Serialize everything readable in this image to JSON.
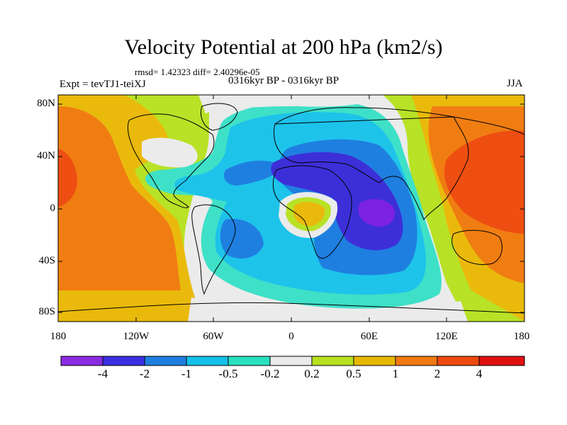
{
  "title": "Velocity Potential at 200 hPa (km2/s)",
  "stats": "rmsd= 1.42323 diff= 2.40296e-05",
  "left_label": "Expt = tevTJ1-teiXJ",
  "center_label": "0316kyr BP - 0316kyr BP",
  "right_label": "JJA",
  "lat_ticks": [
    "80N",
    "40N",
    "0",
    "40S",
    "80S"
  ],
  "lon_ticks": [
    "180",
    "120W",
    "60W",
    "0",
    "60E",
    "120E",
    "180"
  ],
  "colorbar": {
    "labels": [
      "-4",
      "-2",
      "-1",
      "-0.5",
      "-0.2",
      "0.2",
      "0.5",
      "1",
      "2",
      "4"
    ],
    "colors": [
      "#8a2be2",
      "#3a2ee0",
      "#1f7fe0",
      "#15c0e8",
      "#28e0c0",
      "#eaeaea",
      "#b6e020",
      "#e8b800",
      "#f07a12",
      "#ee4a10",
      "#e01010"
    ]
  },
  "map_colors": {
    "violet": "#7d22e0",
    "dark_blue": "#3d2fd8",
    "blue": "#1f7fe0",
    "light_blue": "#1ec3ea",
    "cyan": "#3ee0c8",
    "neutral": "#ebebeb",
    "yellow_green": "#b8e226",
    "gold": "#e9ba0c",
    "orange": "#f07d12",
    "red_orange": "#ee4e12"
  }
}
